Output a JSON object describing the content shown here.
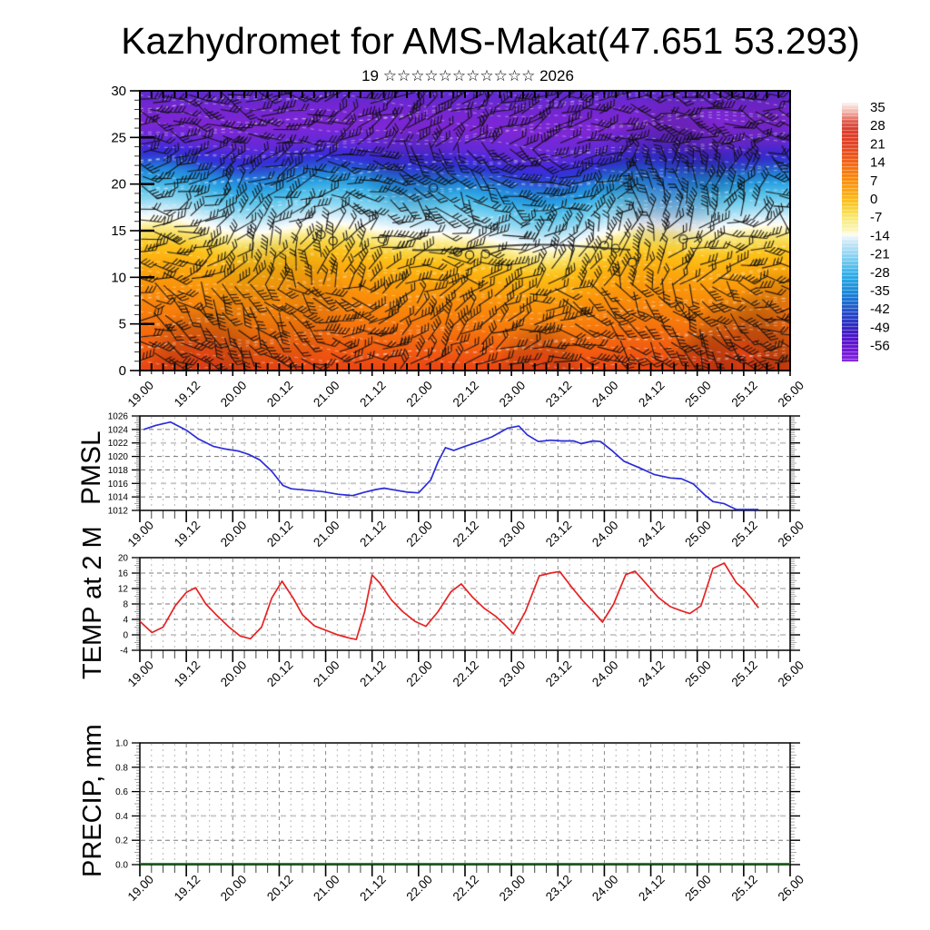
{
  "header": {
    "title": "Kazhydromet for AMS-Makat(47.651 53.293)",
    "subtitle": "19 ☆☆☆☆☆☆☆☆☆☆☆ 2026"
  },
  "time_axis": {
    "major_labels": [
      "19.00",
      "19.12",
      "20.00",
      "20.12",
      "21.00",
      "21.12",
      "22.00",
      "22.12",
      "23.00",
      "23.12",
      "24.00",
      "24.12",
      "25.00",
      "25.12",
      "26.00"
    ],
    "day_range": [
      19,
      26
    ],
    "minor_tick_hours": 3
  },
  "colorbar": {
    "tick_values": [
      35,
      28,
      21,
      14,
      7,
      0,
      -7,
      -14,
      -21,
      -28,
      -35,
      -42,
      -49,
      -56
    ],
    "value_range": [
      36.7,
      -62
    ],
    "gradient_stops": [
      [
        36.7,
        "#fdf4f2"
      ],
      [
        33,
        "#f2b0a6"
      ],
      [
        29.5,
        "#e2594c"
      ],
      [
        26.5,
        "#da3a2a"
      ],
      [
        21,
        "#e24020"
      ],
      [
        16,
        "#ee5316"
      ],
      [
        12,
        "#f4700e"
      ],
      [
        7,
        "#f98d0a"
      ],
      [
        2,
        "#fcab10"
      ],
      [
        -2,
        "#fcc720"
      ],
      [
        -5,
        "#f9dd4a"
      ],
      [
        -8,
        "#f8ec84"
      ],
      [
        -12,
        "#fbf6b4"
      ],
      [
        -13.6,
        "#fefdf0"
      ],
      [
        -14.6,
        "#e8f5fc"
      ],
      [
        -17,
        "#c2e6f7"
      ],
      [
        -21,
        "#93d5f2"
      ],
      [
        -25,
        "#5fc3ee"
      ],
      [
        -28,
        "#35b1e9"
      ],
      [
        -32,
        "#1d9ce0"
      ],
      [
        -36,
        "#1783d6"
      ],
      [
        -40,
        "#1b64cd"
      ],
      [
        -44,
        "#2344c6"
      ],
      [
        -48,
        "#2a2ac0"
      ],
      [
        -51,
        "#3c17c2"
      ],
      [
        -54,
        "#5510cb"
      ],
      [
        -58,
        "#6f13d6"
      ],
      [
        -62,
        "#8426dd"
      ]
    ]
  },
  "chart_data": [
    {
      "id": "wind-cross-section",
      "type": "heatmap",
      "ylabel": "",
      "ylim": [
        0,
        30
      ],
      "yticks": [
        0,
        5,
        10,
        15,
        20,
        25,
        30
      ],
      "overlay_texture": "wind-barbs",
      "contour_dash_color": "#ffffff",
      "color_height_stops": [
        [
          0,
          "#e84414"
        ],
        [
          2,
          "#f25a10"
        ],
        [
          5,
          "#f7790c"
        ],
        [
          8,
          "#fa920a"
        ],
        [
          10.5,
          "#fcae0e"
        ],
        [
          12,
          "#fcc21a"
        ],
        [
          13.2,
          "#f9dc55"
        ],
        [
          14.2,
          "#fdf0a0"
        ],
        [
          14.9,
          "#fffdf0"
        ],
        [
          15.3,
          "#eef8fd"
        ],
        [
          16,
          "#c8eaf8"
        ],
        [
          17,
          "#8fd8f2"
        ],
        [
          18.3,
          "#55c2ec"
        ],
        [
          19.5,
          "#2ba0e2"
        ],
        [
          20.5,
          "#2383dc"
        ],
        [
          21.5,
          "#2b50d4"
        ],
        [
          22.2,
          "#3333d8"
        ],
        [
          23,
          "#4629da"
        ],
        [
          24,
          "#6429d8"
        ],
        [
          26,
          "#7e27d6"
        ],
        [
          28,
          "#7526d3"
        ],
        [
          30,
          "#5e2acd"
        ]
      ],
      "calm_circles": [
        [
          20.95,
          14.6
        ],
        [
          21.08,
          13.9
        ],
        [
          21.61,
          14.1
        ],
        [
          22.16,
          19.6
        ],
        [
          22.42,
          12.7
        ],
        [
          22.55,
          12.4
        ],
        [
          22.72,
          12.5
        ],
        [
          24.0,
          13.4
        ],
        [
          24.12,
          13.1
        ],
        [
          24.3,
          11.6
        ],
        [
          24.85,
          14.1
        ],
        [
          24.81,
          6.8
        ]
      ]
    },
    {
      "id": "pmsl",
      "type": "line",
      "ylabel": "PMSL",
      "ylim": [
        1012,
        1026
      ],
      "ytick_step": 2,
      "yticks": [
        1012,
        1014,
        1016,
        1018,
        1020,
        1022,
        1024,
        1026
      ],
      "light_gridlines": [
        1022,
        1016
      ],
      "line_color": "#2a2cd8",
      "series": [
        [
          19.04,
          1024.0
        ],
        [
          19.17,
          1024.6
        ],
        [
          19.33,
          1025.1
        ],
        [
          19.5,
          1023.9
        ],
        [
          19.63,
          1022.6
        ],
        [
          19.79,
          1021.5
        ],
        [
          19.92,
          1021.1
        ],
        [
          20.06,
          1020.8
        ],
        [
          20.17,
          1020.3
        ],
        [
          20.29,
          1019.5
        ],
        [
          20.42,
          1017.8
        ],
        [
          20.54,
          1015.7
        ],
        [
          20.63,
          1015.2
        ],
        [
          20.79,
          1015.0
        ],
        [
          20.96,
          1014.8
        ],
        [
          21.13,
          1014.4
        ],
        [
          21.29,
          1014.2
        ],
        [
          21.42,
          1014.7
        ],
        [
          21.54,
          1015.1
        ],
        [
          21.63,
          1015.3
        ],
        [
          21.75,
          1015.0
        ],
        [
          21.88,
          1014.7
        ],
        [
          22.0,
          1014.6
        ],
        [
          22.13,
          1016.5
        ],
        [
          22.21,
          1019.2
        ],
        [
          22.29,
          1021.3
        ],
        [
          22.38,
          1020.9
        ],
        [
          22.5,
          1021.5
        ],
        [
          22.63,
          1022.1
        ],
        [
          22.79,
          1022.9
        ],
        [
          22.96,
          1024.2
        ],
        [
          23.08,
          1024.5
        ],
        [
          23.17,
          1023.2
        ],
        [
          23.29,
          1022.2
        ],
        [
          23.42,
          1022.4
        ],
        [
          23.54,
          1022.3
        ],
        [
          23.67,
          1022.3
        ],
        [
          23.75,
          1021.9
        ],
        [
          23.88,
          1022.3
        ],
        [
          23.96,
          1022.2
        ],
        [
          24.08,
          1020.9
        ],
        [
          24.21,
          1019.3
        ],
        [
          24.38,
          1018.3
        ],
        [
          24.54,
          1017.3
        ],
        [
          24.71,
          1016.8
        ],
        [
          24.83,
          1016.7
        ],
        [
          24.96,
          1015.9
        ],
        [
          25.08,
          1014.3
        ],
        [
          25.17,
          1013.3
        ],
        [
          25.29,
          1013.0
        ],
        [
          25.42,
          1012.1
        ],
        [
          25.54,
          1012.0
        ],
        [
          25.66,
          1012.0
        ]
      ]
    },
    {
      "id": "temp2m",
      "type": "line",
      "ylabel": "TEMP at 2 M",
      "ylim": [
        -4,
        20
      ],
      "ytick_step": 4,
      "yticks": [
        -4,
        0,
        4,
        8,
        12,
        16,
        20
      ],
      "light_gridlines": [
        12,
        0
      ],
      "line_color": "#e62222",
      "series": [
        [
          19.0,
          3.5
        ],
        [
          19.13,
          0.6
        ],
        [
          19.25,
          2.0
        ],
        [
          19.38,
          7.5
        ],
        [
          19.5,
          11.0
        ],
        [
          19.6,
          12.2
        ],
        [
          19.71,
          8.0
        ],
        [
          19.83,
          5.0
        ],
        [
          19.96,
          2.0
        ],
        [
          20.08,
          -0.3
        ],
        [
          20.19,
          -1.0
        ],
        [
          20.31,
          2.0
        ],
        [
          20.42,
          9.5
        ],
        [
          20.53,
          13.9
        ],
        [
          20.65,
          9.5
        ],
        [
          20.75,
          5.2
        ],
        [
          20.88,
          2.3
        ],
        [
          21.0,
          1.2
        ],
        [
          21.13,
          0.0
        ],
        [
          21.25,
          -0.8
        ],
        [
          21.33,
          -1.2
        ],
        [
          21.42,
          6.0
        ],
        [
          21.5,
          15.5
        ],
        [
          21.58,
          13.5
        ],
        [
          21.71,
          9.0
        ],
        [
          21.83,
          6.0
        ],
        [
          21.96,
          3.5
        ],
        [
          22.08,
          2.2
        ],
        [
          22.21,
          6.0
        ],
        [
          22.35,
          11.2
        ],
        [
          22.46,
          13.2
        ],
        [
          22.58,
          9.8
        ],
        [
          22.71,
          6.8
        ],
        [
          22.83,
          4.8
        ],
        [
          22.92,
          2.8
        ],
        [
          23.02,
          0.3
        ],
        [
          23.15,
          6.0
        ],
        [
          23.3,
          15.3
        ],
        [
          23.42,
          16.0
        ],
        [
          23.52,
          16.4
        ],
        [
          23.65,
          12.3
        ],
        [
          23.77,
          8.8
        ],
        [
          23.88,
          6.0
        ],
        [
          23.98,
          3.3
        ],
        [
          24.1,
          8.0
        ],
        [
          24.23,
          15.6
        ],
        [
          24.33,
          16.5
        ],
        [
          24.46,
          13.0
        ],
        [
          24.58,
          9.7
        ],
        [
          24.71,
          7.3
        ],
        [
          24.83,
          6.2
        ],
        [
          24.92,
          5.5
        ],
        [
          25.04,
          7.5
        ],
        [
          25.17,
          17.2
        ],
        [
          25.29,
          18.6
        ],
        [
          25.42,
          13.5
        ],
        [
          25.5,
          11.8
        ],
        [
          25.58,
          9.5
        ],
        [
          25.66,
          7.0
        ]
      ]
    },
    {
      "id": "precip",
      "type": "line",
      "ylabel": "PRECIP, mm",
      "ylim": [
        0,
        1
      ],
      "ytick_step": 0.2,
      "yticks": [
        0.0,
        0.2,
        0.4,
        0.6,
        0.8,
        1.0
      ],
      "ytick_labels": [
        "0.0",
        "0.2",
        "0.4",
        "0.6",
        "0.8",
        "1.0"
      ],
      "light_gridlines": [
        0.4
      ],
      "line_color": "#117a11",
      "series": [
        [
          19.0,
          0.0
        ],
        [
          26.0,
          0.0
        ]
      ]
    }
  ]
}
